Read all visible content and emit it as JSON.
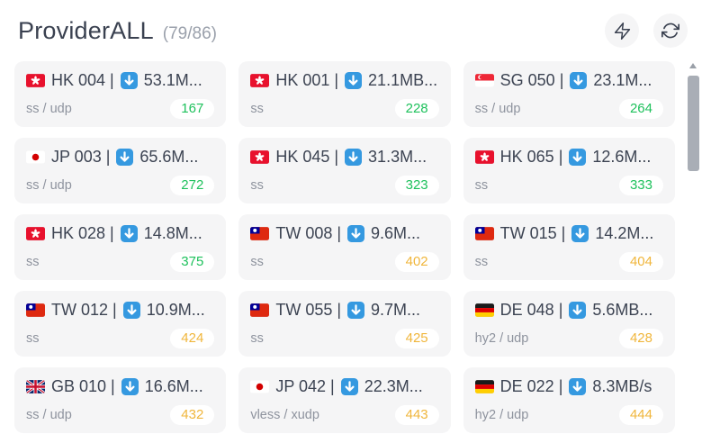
{
  "header": {
    "title": "ProviderALL",
    "count": "(79/86)",
    "actions": [
      {
        "label": "speedtest",
        "icon": "bolt-icon"
      },
      {
        "label": "refresh",
        "icon": "refresh-icon"
      }
    ]
  },
  "colors": {
    "latency_ok": "#1ec15c",
    "latency_warn": "#f0b63c",
    "download_icon_bg": "#3599e0",
    "card_bg": "#f5f5f6"
  },
  "nodes": [
    {
      "flag": "hk",
      "name": "HK 004 |",
      "speed": "53.1M...",
      "protocol": "ss / udp",
      "latency": "167",
      "status": "ok"
    },
    {
      "flag": "hk",
      "name": "HK 001 |",
      "speed": "21.1MB...",
      "protocol": "ss",
      "latency": "228",
      "status": "ok"
    },
    {
      "flag": "sg",
      "name": "SG 050 |",
      "speed": "23.1M...",
      "protocol": "ss / udp",
      "latency": "264",
      "status": "ok"
    },
    {
      "flag": "jp",
      "name": "JP 003 |",
      "speed": "65.6M...",
      "protocol": "ss / udp",
      "latency": "272",
      "status": "ok"
    },
    {
      "flag": "hk",
      "name": "HK 045 |",
      "speed": "31.3M...",
      "protocol": "ss",
      "latency": "323",
      "status": "ok"
    },
    {
      "flag": "hk",
      "name": "HK 065 |",
      "speed": "12.6M...",
      "protocol": "ss",
      "latency": "333",
      "status": "ok"
    },
    {
      "flag": "hk",
      "name": "HK 028 |",
      "speed": "14.8M...",
      "protocol": "ss",
      "latency": "375",
      "status": "ok"
    },
    {
      "flag": "tw",
      "name": "TW 008 |",
      "speed": "9.6M...",
      "protocol": "ss",
      "latency": "402",
      "status": "warn"
    },
    {
      "flag": "tw",
      "name": "TW 015 |",
      "speed": "14.2M...",
      "protocol": "ss",
      "latency": "404",
      "status": "warn"
    },
    {
      "flag": "tw",
      "name": "TW 012 |",
      "speed": "10.9M...",
      "protocol": "ss",
      "latency": "424",
      "status": "warn"
    },
    {
      "flag": "tw",
      "name": "TW 055 |",
      "speed": "9.7M...",
      "protocol": "ss",
      "latency": "425",
      "status": "warn"
    },
    {
      "flag": "de",
      "name": "DE 048 |",
      "speed": "5.6MB...",
      "protocol": "hy2 / udp",
      "latency": "428",
      "status": "warn"
    },
    {
      "flag": "gb",
      "name": "GB 010 |",
      "speed": "16.6M...",
      "protocol": "ss / udp",
      "latency": "432",
      "status": "warn"
    },
    {
      "flag": "jp",
      "name": "JP 042 |",
      "speed": "22.3M...",
      "protocol": "vless / xudp",
      "latency": "443",
      "status": "warn"
    },
    {
      "flag": "de",
      "name": "DE 022 |",
      "speed": "8.3MB/s",
      "protocol": "hy2 / udp",
      "latency": "444",
      "status": "warn"
    }
  ]
}
